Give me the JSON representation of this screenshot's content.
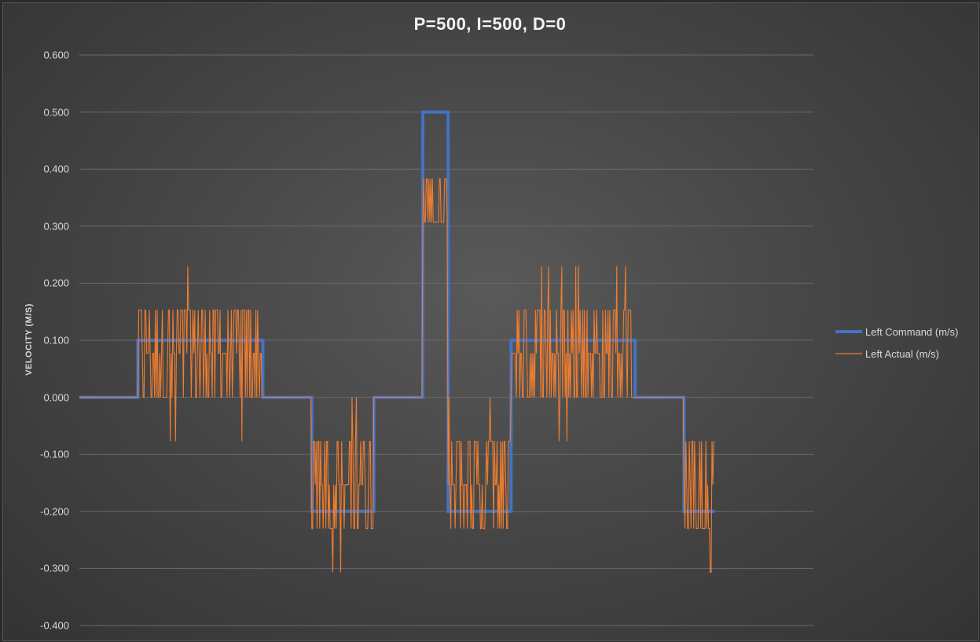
{
  "chart_data": {
    "type": "line",
    "title": "P=500, I=500, D=0",
    "ylabel": "VELOCITY (M/S)",
    "xlabel": "",
    "ylim": [
      -0.4,
      0.6
    ],
    "yticks": [
      "0.600",
      "0.500",
      "0.400",
      "0.300",
      "0.200",
      "0.100",
      "0.000",
      "-0.100",
      "-0.200",
      "-0.300",
      "-0.400"
    ],
    "ytick_values": [
      0.6,
      0.5,
      0.4,
      0.3,
      0.2,
      0.1,
      0.0,
      -0.1,
      -0.2,
      -0.3,
      -0.4
    ],
    "grid": true,
    "legend_position": "right",
    "x_count": 840,
    "series": [
      {
        "name": "Left Command (m/s)",
        "color": "#4472C4",
        "segments": [
          {
            "from": 0,
            "to": 67,
            "value": 0.0
          },
          {
            "from": 67,
            "to": 210,
            "value": 0.1
          },
          {
            "from": 210,
            "to": 266,
            "value": 0.0
          },
          {
            "from": 266,
            "to": 337,
            "value": -0.2
          },
          {
            "from": 337,
            "to": 393,
            "value": 0.0
          },
          {
            "from": 393,
            "to": 422,
            "value": 0.5
          },
          {
            "from": 422,
            "to": 494,
            "value": -0.2
          },
          {
            "from": 494,
            "to": 636,
            "value": 0.1
          },
          {
            "from": 636,
            "to": 692,
            "value": 0.0
          },
          {
            "from": 692,
            "to": 727,
            "value": -0.2
          }
        ]
      },
      {
        "name": "Left Actual (m/s)",
        "color": "#ED7D31",
        "segments": [
          {
            "from": 0,
            "to": 67,
            "levels": [
              0.0
            ],
            "spikes": []
          },
          {
            "from": 67,
            "to": 210,
            "levels": [
              0.0,
              0.077,
              0.153
            ],
            "spikes": [
              0.23,
              -0.077
            ]
          },
          {
            "from": 210,
            "to": 266,
            "levels": [
              0.0
            ],
            "spikes": []
          },
          {
            "from": 266,
            "to": 337,
            "levels": [
              -0.153,
              -0.23,
              -0.077
            ],
            "spikes": [
              0.0,
              -0.307
            ]
          },
          {
            "from": 337,
            "to": 393,
            "levels": [
              0.0
            ],
            "spikes": []
          },
          {
            "from": 393,
            "to": 422,
            "levels": [
              0.307,
              0.383
            ],
            "spikes": [
              0.23
            ]
          },
          {
            "from": 422,
            "to": 494,
            "levels": [
              -0.153,
              -0.23,
              -0.077
            ],
            "spikes": [
              0.0,
              -0.307
            ]
          },
          {
            "from": 494,
            "to": 636,
            "levels": [
              0.0,
              0.077,
              0.153
            ],
            "spikes": [
              0.23,
              -0.077
            ]
          },
          {
            "from": 636,
            "to": 692,
            "levels": [
              0.0
            ],
            "spikes": []
          },
          {
            "from": 692,
            "to": 727,
            "levels": [
              -0.153,
              -0.23,
              -0.077
            ],
            "spikes": [
              -0.307
            ]
          }
        ]
      }
    ]
  }
}
